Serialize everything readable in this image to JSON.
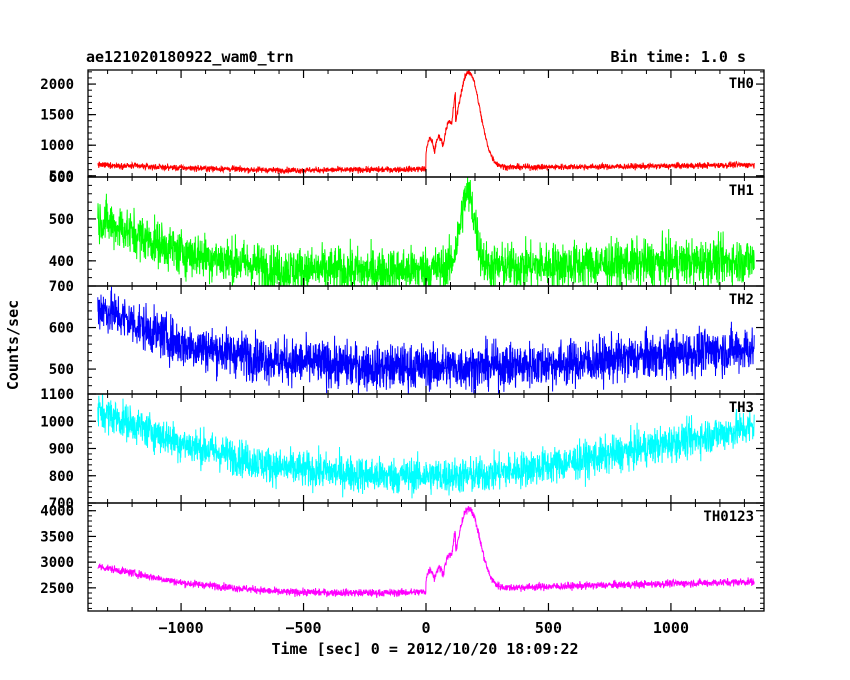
{
  "chart_data": {
    "type": "line",
    "title_left": "ae121020180922_wam0_trn",
    "title_right": "Bin time: 1.0 s",
    "xlabel": "Time [sec] 0 = 2012/10/20 18:09:22",
    "ylabel": "Counts/sec",
    "xlim": [
      -1380,
      1380
    ],
    "x_ticks": [
      -1000,
      -500,
      0,
      500,
      1000
    ],
    "x_tick_labels": [
      "−1000",
      "−500",
      "0",
      "500",
      "1000"
    ],
    "x_range": [
      -1340,
      1340
    ],
    "panels": [
      {
        "name": "TH0",
        "color": "#ff0000",
        "ylim": [
          480,
          2230
        ],
        "y_ticks": [
          500,
          1000,
          1500,
          2000
        ],
        "y_tick_labels": [
          "500",
          "1000",
          "1500",
          "2000"
        ],
        "baseline": [
          [
            -1340,
            680
          ],
          [
            -1000,
            630
          ],
          [
            -600,
            590
          ],
          [
            -200,
            600
          ],
          [
            -20,
            610
          ],
          [
            300,
            640
          ],
          [
            800,
            650
          ],
          [
            1340,
            680
          ]
        ],
        "noise": 40,
        "features": [
          {
            "x0": 0,
            "x1": 120,
            "value": 1100
          },
          {
            "x": 175,
            "peak": 2200,
            "width": 45
          }
        ]
      },
      {
        "name": "TH1",
        "color": "#00ff00",
        "ylim": [
          340,
          600
        ],
        "y_ticks": [
          400,
          500,
          600
        ],
        "y_tick_labels": [
          "400",
          "500",
          "600"
        ],
        "baseline": [
          [
            -1340,
            500
          ],
          [
            -1000,
            420
          ],
          [
            -600,
            380
          ],
          [
            -200,
            375
          ],
          [
            200,
            385
          ],
          [
            600,
            390
          ],
          [
            1000,
            395
          ],
          [
            1340,
            400
          ]
        ],
        "noise": 45,
        "features": [
          {
            "x": 170,
            "peak": 560,
            "width": 30
          }
        ]
      },
      {
        "name": "TH2",
        "color": "#0000ff",
        "ylim": [
          440,
          700
        ],
        "y_ticks": [
          500,
          600,
          700
        ],
        "y_tick_labels": [
          "500",
          "600",
          "700"
        ],
        "baseline": [
          [
            -1340,
            650
          ],
          [
            -1000,
            560
          ],
          [
            -600,
            520
          ],
          [
            -200,
            505
          ],
          [
            200,
            505
          ],
          [
            600,
            515
          ],
          [
            1000,
            535
          ],
          [
            1340,
            550
          ]
        ],
        "noise": 45,
        "features": []
      },
      {
        "name": "TH3",
        "color": "#00ffff",
        "ylim": [
          700,
          1100
        ],
        "y_ticks": [
          700,
          800,
          900,
          1000,
          1100
        ],
        "y_tick_labels": [
          "700",
          "800",
          "900",
          "1000",
          "1100"
        ],
        "baseline": [
          [
            -1340,
            1040
          ],
          [
            -1000,
            920
          ],
          [
            -600,
            830
          ],
          [
            -200,
            800
          ],
          [
            200,
            800
          ],
          [
            600,
            850
          ],
          [
            1000,
            920
          ],
          [
            1340,
            980
          ]
        ],
        "noise": 55,
        "features": []
      },
      {
        "name": "TH0123",
        "color": "#ff00ff",
        "ylim": [
          2050,
          4150
        ],
        "y_ticks": [
          2500,
          3000,
          3500,
          4000
        ],
        "y_tick_labels": [
          "2500",
          "3000",
          "3500",
          "4000"
        ],
        "baseline": [
          [
            -1340,
            2920
          ],
          [
            -1000,
            2600
          ],
          [
            -600,
            2420
          ],
          [
            -200,
            2400
          ],
          [
            -20,
            2420
          ],
          [
            300,
            2500
          ],
          [
            800,
            2560
          ],
          [
            1340,
            2620
          ]
        ],
        "noise": 60,
        "features": [
          {
            "x0": 0,
            "x1": 120,
            "value": 2850
          },
          {
            "x": 175,
            "peak": 4050,
            "width": 45
          }
        ]
      }
    ]
  }
}
